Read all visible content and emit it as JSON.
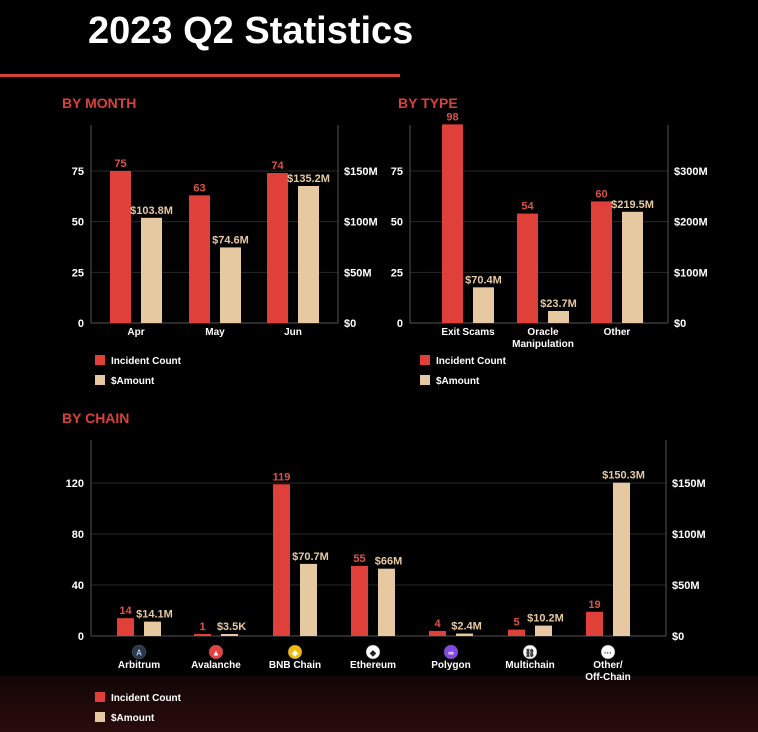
{
  "title": "2023 Q2 Statistics",
  "colors": {
    "count": "#e0403a",
    "amount": "#e6c9a0",
    "heading": "#d8423a",
    "count_label": "#d9534a",
    "amount_label": "#e6c9a0"
  },
  "legend": {
    "count": "Incident Count",
    "amount": "$Amount"
  },
  "chart_data": [
    {
      "type": "bar",
      "title": "BY MONTH",
      "categories": [
        "Apr",
        "May",
        "Jun"
      ],
      "series": [
        {
          "name": "Incident Count",
          "values": [
            75,
            63,
            74
          ],
          "labels": [
            "75",
            "63",
            "74"
          ],
          "axis": "left"
        },
        {
          "name": "$Amount",
          "unit": "$M",
          "values": [
            103.8,
            74.6,
            135.2
          ],
          "labels": [
            "$103.8M",
            "$74.6M",
            "$135.2M"
          ],
          "axis": "right"
        }
      ],
      "left_ticks": {
        "values": [
          0,
          25,
          50,
          75
        ],
        "labels": [
          "0",
          "25",
          "50",
          "75"
        ]
      },
      "right_ticks": {
        "values": [
          0,
          50,
          100,
          150
        ],
        "labels": [
          "$0",
          "$50M",
          "$100M",
          "$150M"
        ]
      },
      "ylim_left": [
        0,
        97
      ],
      "ylim_right": [
        0,
        194
      ],
      "grid": true,
      "legend_position": "bottom-left"
    },
    {
      "type": "bar",
      "title": "BY TYPE",
      "categories": [
        "Exit Scams",
        "Oracle Manipulation",
        "Other"
      ],
      "category_lines": [
        [
          "Exit Scams"
        ],
        [
          "Oracle",
          "Manipulation"
        ],
        [
          "Other"
        ]
      ],
      "series": [
        {
          "name": "Incident Count",
          "values": [
            98,
            54,
            60
          ],
          "labels": [
            "98",
            "54",
            "60"
          ],
          "axis": "left"
        },
        {
          "name": "$Amount",
          "unit": "$M",
          "values": [
            70.4,
            23.7,
            219.5
          ],
          "labels": [
            "$70.4M",
            "$23.7M",
            "$219.5M"
          ],
          "axis": "right"
        }
      ],
      "left_ticks": {
        "values": [
          0,
          25,
          50,
          75
        ],
        "labels": [
          "0",
          "25",
          "50",
          "75"
        ]
      },
      "right_ticks": {
        "values": [
          0,
          100,
          200,
          300
        ],
        "labels": [
          "$0",
          "$100M",
          "$200M",
          "$300M"
        ]
      },
      "ylim_left": [
        0,
        97
      ],
      "ylim_right": [
        0,
        388
      ],
      "grid": true,
      "legend_position": "bottom-left"
    },
    {
      "type": "bar",
      "title": "BY CHAIN",
      "categories": [
        "Arbitrum",
        "Avalanche",
        "BNB Chain",
        "Ethereum",
        "Polygon",
        "Multichain",
        "Other/ Off-Chain"
      ],
      "category_lines": [
        [
          "Arbitrum"
        ],
        [
          "Avalanche"
        ],
        [
          "BNB Chain"
        ],
        [
          "Ethereum"
        ],
        [
          "Polygon"
        ],
        [
          "Multichain"
        ],
        [
          "Other/",
          "Off-Chain"
        ]
      ],
      "category_icons": [
        "arbitrum-icon",
        "avalanche-icon",
        "bnb-chain-icon",
        "ethereum-icon",
        "polygon-icon",
        "multichain-icon",
        "other-icon"
      ],
      "series": [
        {
          "name": "Incident Count",
          "values": [
            14,
            1,
            119,
            55,
            4,
            5,
            19
          ],
          "labels": [
            "14",
            "1",
            "119",
            "55",
            "4",
            "5",
            "19"
          ],
          "axis": "left"
        },
        {
          "name": "$Amount",
          "unit": "$M",
          "values": [
            14.1,
            0.0035,
            70.7,
            66,
            2.4,
            10.2,
            150.3
          ],
          "labels": [
            "$14.1M",
            "$3.5K",
            "$70.7M",
            "$66M",
            "$2.4M",
            "$10.2M",
            "$150.3M"
          ],
          "axis": "right"
        }
      ],
      "left_ticks": {
        "values": [
          0,
          40,
          80,
          120
        ],
        "labels": [
          "0",
          "40",
          "80",
          "120"
        ]
      },
      "right_ticks": {
        "values": [
          0,
          50,
          100,
          150
        ],
        "labels": [
          "$0",
          "$50M",
          "$100M",
          "$150M"
        ]
      },
      "ylim_left": [
        0,
        154
      ],
      "ylim_right": [
        0,
        192
      ],
      "grid": true,
      "legend_position": "bottom-left"
    }
  ]
}
